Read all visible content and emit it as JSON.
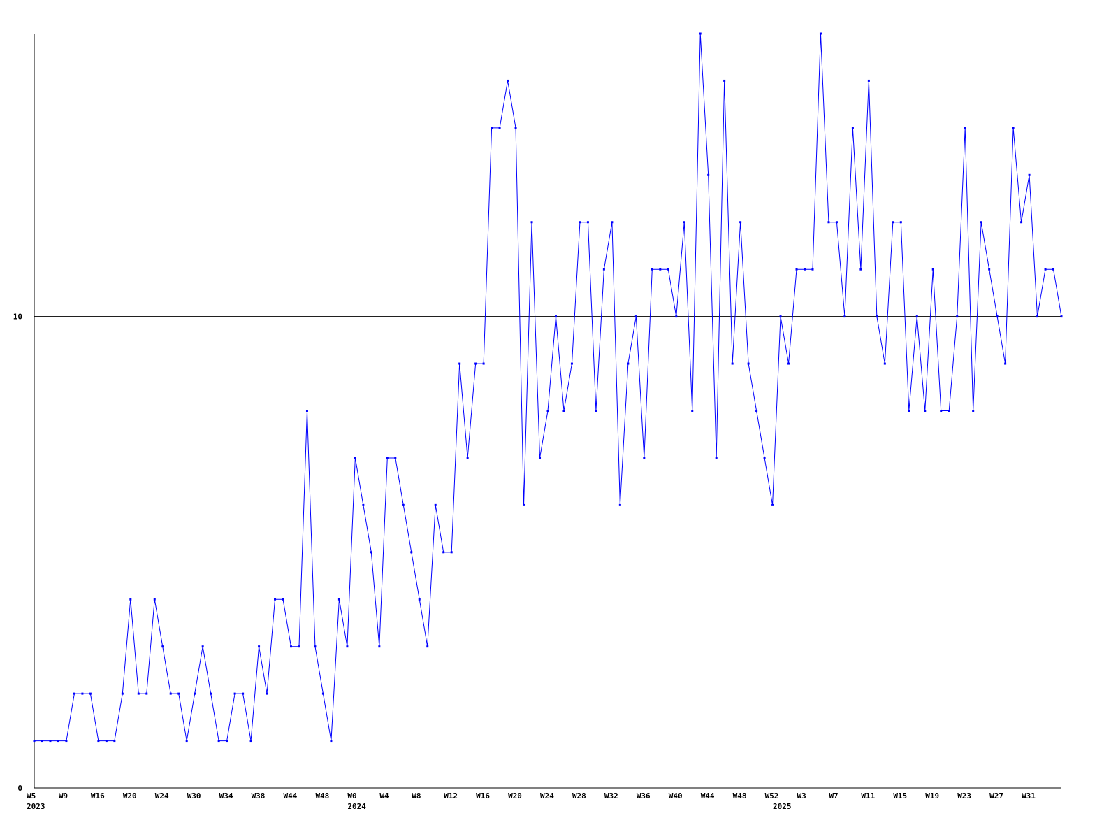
{
  "chart_data": {
    "type": "line",
    "categories": [
      "W5",
      null,
      null,
      null,
      "W9",
      null,
      null,
      null,
      "W16",
      null,
      null,
      null,
      "W20",
      null,
      null,
      null,
      "W24",
      null,
      null,
      null,
      "W30",
      null,
      null,
      null,
      "W34",
      null,
      null,
      null,
      "W38",
      null,
      null,
      null,
      "W44",
      null,
      null,
      null,
      "W48",
      null,
      null,
      null,
      "W0",
      null,
      null,
      null,
      "W4",
      null,
      null,
      null,
      "W8",
      null,
      null,
      null,
      "W12",
      null,
      null,
      null,
      "W16",
      null,
      null,
      null,
      "W20",
      null,
      null,
      null,
      "W24",
      null,
      null,
      null,
      "W28",
      null,
      null,
      null,
      "W32",
      null,
      null,
      null,
      "W36",
      null,
      null,
      null,
      "W40",
      null,
      null,
      null,
      "W44",
      null,
      null,
      null,
      "W48",
      null,
      null,
      null,
      "W52",
      null,
      null,
      null,
      "W3",
      null,
      null,
      null,
      "W7",
      null,
      null,
      null,
      "W11",
      null,
      null,
      null,
      "W15",
      null,
      null,
      null,
      "W19",
      null,
      null,
      null,
      "W23",
      null,
      null,
      null,
      "W27",
      null,
      null,
      null,
      "W31",
      null,
      null,
      null,
      null
    ],
    "year_labels": [
      {
        "index": 0,
        "label": "2023"
      },
      {
        "index": 40,
        "label": "2024"
      },
      {
        "index": 93,
        "label": "2025"
      }
    ],
    "series": [
      {
        "color": "#0000ff",
        "values": [
          1,
          1,
          1,
          1,
          1,
          2,
          2,
          2,
          1,
          1,
          1,
          2,
          4,
          2,
          2,
          4,
          3,
          2,
          2,
          1,
          2,
          3,
          2,
          1,
          1,
          2,
          2,
          1,
          3,
          2,
          4,
          4,
          3,
          3,
          8,
          3,
          2,
          1,
          4,
          3,
          7,
          6,
          5,
          3,
          7,
          7,
          6,
          5,
          4,
          3,
          6,
          5,
          5,
          9,
          7,
          9,
          9,
          14,
          14,
          15,
          14,
          6,
          12,
          7,
          8,
          10,
          8,
          9,
          12,
          12,
          8,
          11,
          12,
          6,
          9,
          10,
          7,
          11,
          11,
          11,
          10,
          12,
          8,
          16,
          13,
          7,
          15,
          9,
          12,
          9,
          8,
          7,
          6,
          10,
          9,
          11,
          11,
          11,
          16,
          12,
          12,
          10,
          14,
          11,
          15,
          10,
          9,
          12,
          12,
          8,
          10,
          8,
          11,
          8,
          8,
          10,
          14,
          8,
          12,
          11,
          10,
          9,
          14,
          12,
          13,
          10,
          11,
          11,
          10
        ]
      }
    ],
    "ylim": [
      0,
      16
    ],
    "yticks": [
      0,
      10
    ],
    "grid": true
  }
}
